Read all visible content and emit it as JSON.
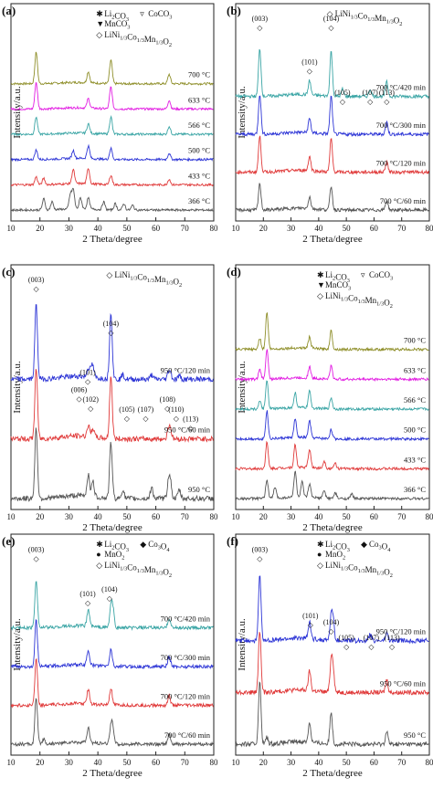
{
  "figure": {
    "x_tick_labels": [
      "10",
      "20",
      "30",
      "40",
      "50",
      "60",
      "70",
      "80"
    ],
    "xlabel": "2 Theta/degree",
    "ylabel": "Intensity/a.u."
  },
  "chart_data": [
    {
      "panel": "(a)",
      "type": "line",
      "xlabel": "2 Theta/degree",
      "ylabel": "Intensity/a.u.",
      "xlim": [
        10,
        80
      ],
      "legend": [
        "Li2CO3",
        "CoCO3",
        "MnCO3",
        "LiNi1/3Co1/3Mn1/3O2"
      ],
      "series": [
        {
          "name": "700 °C",
          "color": "#8f8f2a",
          "peaks": [
            [
              18.7,
              1.0
            ],
            [
              36.7,
              0.35
            ],
            [
              44.5,
              0.75
            ],
            [
              64.6,
              0.3
            ]
          ]
        },
        {
          "name": "633 °C",
          "color": "#e21de2",
          "peaks": [
            [
              18.7,
              0.85
            ],
            [
              36.7,
              0.3
            ],
            [
              44.5,
              0.7
            ],
            [
              64.6,
              0.28
            ]
          ]
        },
        {
          "name": "566 °C",
          "color": "#3aa5a5",
          "peaks": [
            [
              18.7,
              0.55
            ],
            [
              36.7,
              0.3
            ],
            [
              44.5,
              0.55
            ],
            [
              64.6,
              0.25
            ]
          ]
        },
        {
          "name": "500 °C",
          "color": "#2d35d6",
          "peaks": [
            [
              18.7,
              0.3
            ],
            [
              31.5,
              0.25
            ],
            [
              36.7,
              0.4
            ],
            [
              44.5,
              0.35
            ],
            [
              64.6,
              0.2
            ]
          ]
        },
        {
          "name": "433 °C",
          "color": "#e03a3a",
          "peaks": [
            [
              18.7,
              0.25
            ],
            [
              21.3,
              0.2
            ],
            [
              31.5,
              0.45
            ],
            [
              36.7,
              0.5
            ],
            [
              44.5,
              0.3
            ],
            [
              64.6,
              0.18
            ]
          ]
        },
        {
          "name": "366 °C",
          "color": "#555555",
          "peaks": [
            [
              21.3,
              0.35
            ],
            [
              24.2,
              0.25
            ],
            [
              30.5,
              0.45
            ],
            [
              31.5,
              0.6
            ],
            [
              34.0,
              0.35
            ],
            [
              36.7,
              0.35
            ],
            [
              42.0,
              0.25
            ],
            [
              46.0,
              0.2
            ],
            [
              49.0,
              0.2
            ],
            [
              52.0,
              0.15
            ]
          ]
        }
      ]
    },
    {
      "panel": "(b)",
      "type": "line",
      "xlabel": "2 Theta/degree",
      "ylabel": "Intensity/a.u.",
      "xlim": [
        10,
        80
      ],
      "legend": [
        "LiNi1/3Co1/3Mn1/3O2"
      ],
      "peak_labels": [
        "(003)",
        "(101)",
        "(104)",
        "(105)",
        "(107)",
        "(113)"
      ],
      "series": [
        {
          "name": "700 °C/420 min",
          "color": "#3aa5a5",
          "peaks": [
            [
              18.7,
              1.0
            ],
            [
              36.7,
              0.3
            ],
            [
              44.5,
              0.95
            ],
            [
              48.6,
              0.15
            ],
            [
              58.6,
              0.15
            ],
            [
              64.6,
              0.3
            ]
          ]
        },
        {
          "name": "700 °C/300 min",
          "color": "#2d35d6",
          "peaks": [
            [
              18.7,
              0.85
            ],
            [
              36.7,
              0.3
            ],
            [
              44.5,
              0.8
            ],
            [
              64.6,
              0.25
            ]
          ]
        },
        {
          "name": "700 °C/120 min",
          "color": "#e03a3a",
          "peaks": [
            [
              18.7,
              0.75
            ],
            [
              36.7,
              0.3
            ],
            [
              44.5,
              0.7
            ],
            [
              64.6,
              0.22
            ]
          ]
        },
        {
          "name": "700 °C/60 min",
          "color": "#555555",
          "peaks": [
            [
              18.7,
              0.55
            ],
            [
              36.7,
              0.25
            ],
            [
              44.5,
              0.5
            ],
            [
              64.6,
              0.2
            ]
          ]
        }
      ]
    },
    {
      "panel": "(c)",
      "type": "line",
      "xlabel": "2 Theta/degree",
      "ylabel": "Intensity/a.u.",
      "xlim": [
        10,
        80
      ],
      "legend": [
        "LiNi1/3Co1/3Mn1/3O2"
      ],
      "peak_labels": [
        "(003)",
        "(101)",
        "(006)",
        "(102)",
        "(104)",
        "(105)",
        "(107)",
        "(108)",
        "(110)",
        "(113)"
      ],
      "series": [
        {
          "name": "950 °C/120 min",
          "color": "#2d35d6",
          "peaks": [
            [
              18.7,
              1.0
            ],
            [
              36.7,
              0.12
            ],
            [
              37.8,
              0.1
            ],
            [
              38.3,
              0.1
            ],
            [
              44.5,
              0.9
            ],
            [
              48.6,
              0.06
            ],
            [
              58.6,
              0.06
            ],
            [
              64.4,
              0.08
            ],
            [
              65.0,
              0.08
            ],
            [
              68.1,
              0.05
            ]
          ]
        },
        {
          "name": "950 °C/60 min",
          "color": "#e03a3a",
          "peaks": [
            [
              18.7,
              0.95
            ],
            [
              36.7,
              0.15
            ],
            [
              38.3,
              0.12
            ],
            [
              44.5,
              0.85
            ],
            [
              64.4,
              0.12
            ],
            [
              65.0,
              0.12
            ]
          ]
        },
        {
          "name": "950 °C",
          "color": "#555555",
          "peaks": [
            [
              18.7,
              0.95
            ],
            [
              36.7,
              0.3
            ],
            [
              38.3,
              0.2
            ],
            [
              44.5,
              0.75
            ],
            [
              48.6,
              0.12
            ],
            [
              58.6,
              0.15
            ],
            [
              64.4,
              0.22
            ],
            [
              65.0,
              0.2
            ],
            [
              68.1,
              0.12
            ]
          ]
        }
      ]
    },
    {
      "panel": "(d)",
      "type": "line",
      "xlabel": "2 Theta/degree",
      "ylabel": "Intensity/a.u.",
      "xlim": [
        10,
        80
      ],
      "legend": [
        "Li2CO3",
        "CoCO3",
        "MnCO3",
        "LiNi1/3Co1/3Mn1/3O2"
      ],
      "series": [
        {
          "name": "700 °C",
          "color": "#8f8f2a",
          "peaks": [
            [
              18.7,
              0.3
            ],
            [
              21.3,
              1.0
            ],
            [
              36.7,
              0.3
            ],
            [
              44.5,
              0.5
            ]
          ]
        },
        {
          "name": "633 °C",
          "color": "#e21de2",
          "peaks": [
            [
              18.7,
              0.25
            ],
            [
              21.3,
              0.8
            ],
            [
              36.7,
              0.3
            ],
            [
              44.5,
              0.35
            ]
          ]
        },
        {
          "name": "566 °C",
          "color": "#3aa5a5",
          "peaks": [
            [
              18.7,
              0.2
            ],
            [
              21.3,
              0.75
            ],
            [
              31.5,
              0.4
            ],
            [
              36.7,
              0.45
            ],
            [
              44.5,
              0.3
            ]
          ]
        },
        {
          "name": "500 °C",
          "color": "#2d35d6",
          "peaks": [
            [
              21.3,
              0.75
            ],
            [
              31.5,
              0.5
            ],
            [
              36.7,
              0.45
            ],
            [
              44.5,
              0.25
            ]
          ]
        },
        {
          "name": "433 °C",
          "color": "#e03a3a",
          "peaks": [
            [
              21.3,
              0.7
            ],
            [
              31.5,
              0.6
            ],
            [
              36.7,
              0.5
            ],
            [
              42.0,
              0.2
            ],
            [
              46.0,
              0.15
            ]
          ]
        },
        {
          "name": "366 °C",
          "color": "#555555",
          "peaks": [
            [
              21.3,
              0.5
            ],
            [
              24.2,
              0.3
            ],
            [
              31.5,
              0.7
            ],
            [
              34.0,
              0.4
            ],
            [
              36.7,
              0.35
            ],
            [
              42.0,
              0.2
            ],
            [
              46.0,
              0.15
            ],
            [
              52.0,
              0.12
            ]
          ]
        }
      ]
    },
    {
      "panel": "(e)",
      "type": "line",
      "xlabel": "2 Theta/degree",
      "ylabel": "Intensity/a.u.",
      "xlim": [
        10,
        80
      ],
      "legend": [
        "Li2CO3",
        "Co3O4",
        "MnO2",
        "LiNi1/3Co1/3Mn1/3O2"
      ],
      "peak_labels": [
        "(003)",
        "(101)",
        "(104)"
      ],
      "series": [
        {
          "name": "700 °C/420 min",
          "color": "#3aa5a5",
          "peaks": [
            [
              18.7,
              1.0
            ],
            [
              36.7,
              0.35
            ],
            [
              44.5,
              0.4
            ],
            [
              45.2,
              0.35
            ],
            [
              64.6,
              0.2
            ]
          ]
        },
        {
          "name": "700 °C/300 min",
          "color": "#2d35d6",
          "peaks": [
            [
              18.7,
              0.95
            ],
            [
              36.7,
              0.3
            ],
            [
              44.5,
              0.35
            ],
            [
              64.6,
              0.2
            ]
          ]
        },
        {
          "name": "700 °C/120 min",
          "color": "#e03a3a",
          "peaks": [
            [
              18.7,
              0.95
            ],
            [
              36.7,
              0.3
            ],
            [
              44.5,
              0.35
            ],
            [
              64.6,
              0.2
            ]
          ]
        },
        {
          "name": "700 °C/60 min",
          "color": "#555555",
          "peaks": [
            [
              18.7,
              0.95
            ],
            [
              21.3,
              0.1
            ],
            [
              36.7,
              0.3
            ],
            [
              44.5,
              0.35
            ],
            [
              45.2,
              0.3
            ],
            [
              64.6,
              0.2
            ]
          ]
        }
      ]
    },
    {
      "panel": "(f)",
      "type": "line",
      "xlabel": "2 Theta/degree",
      "ylabel": "Intensity/a.u.",
      "xlim": [
        10,
        80
      ],
      "legend": [
        "Li2CO3",
        "Co3O4",
        "MnO2",
        "LiNi1/3Co1/3Mn1/3O2"
      ],
      "peak_labels": [
        "(003)",
        "(101)",
        "(104)",
        "(105)",
        "(107)",
        "(113)"
      ],
      "series": [
        {
          "name": "950 °C/120 min",
          "color": "#2d35d6",
          "peaks": [
            [
              18.7,
              1.0
            ],
            [
              36.7,
              0.25
            ],
            [
              44.5,
              0.35
            ],
            [
              45.2,
              0.3
            ],
            [
              58.6,
              0.1
            ],
            [
              64.6,
              0.12
            ]
          ]
        },
        {
          "name": "950 °C/60 min",
          "color": "#e03a3a",
          "peaks": [
            [
              18.7,
              0.95
            ],
            [
              36.7,
              0.3
            ],
            [
              44.5,
              0.45
            ],
            [
              45.2,
              0.35
            ],
            [
              64.6,
              0.2
            ]
          ]
        },
        {
          "name": "950 °C",
          "color": "#555555",
          "peaks": [
            [
              18.7,
              0.95
            ],
            [
              21.3,
              0.1
            ],
            [
              36.7,
              0.3
            ],
            [
              44.5,
              0.5
            ],
            [
              64.6,
              0.2
            ]
          ]
        }
      ]
    }
  ]
}
